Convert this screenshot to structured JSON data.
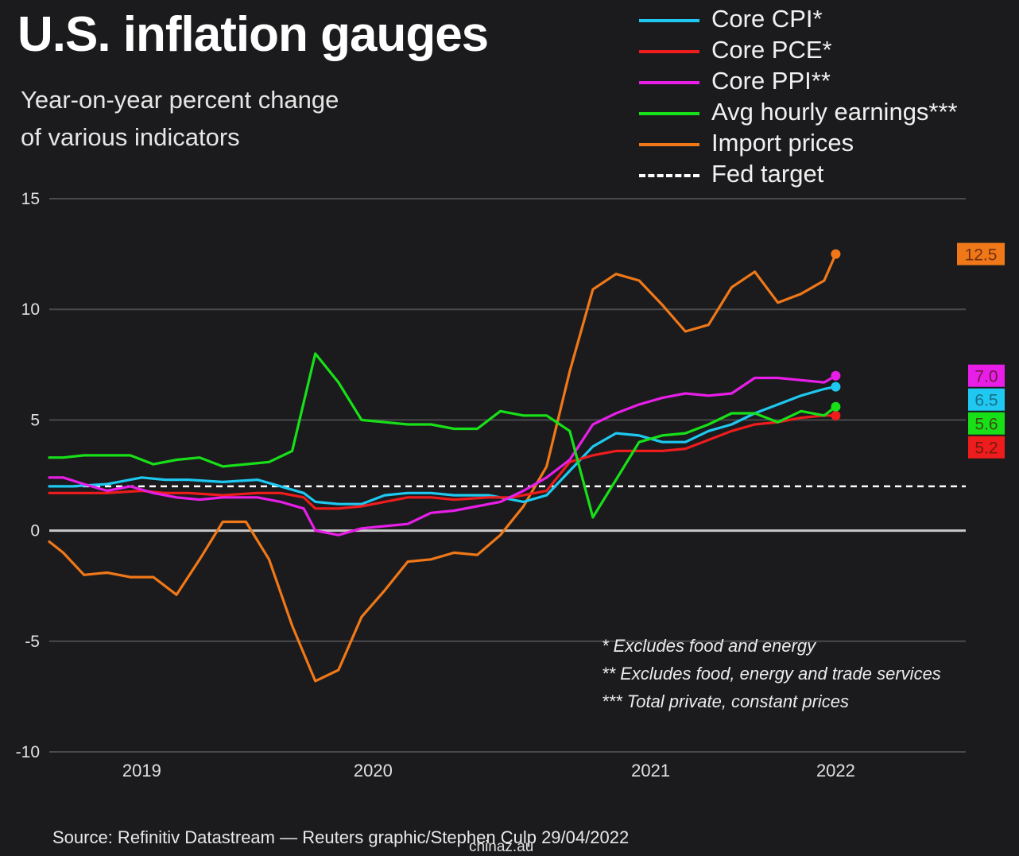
{
  "header": {
    "title": "U.S. inflation gauges",
    "subtitle_line1": "Year-on-year percent change",
    "subtitle_line2": "of various indicators"
  },
  "legend": [
    {
      "label": "Core CPI*",
      "color": "#1ec8f0",
      "style": "solid"
    },
    {
      "label": "Core PCE*",
      "color": "#ee1c1c",
      "style": "solid"
    },
    {
      "label": "Core PPI**",
      "color": "#e81ee8",
      "style": "solid"
    },
    {
      "label": "Avg hourly earnings***",
      "color": "#18e018",
      "style": "solid"
    },
    {
      "label": "Import prices",
      "color": "#f07818",
      "style": "solid"
    },
    {
      "label": "Fed target",
      "color": "#ffffff",
      "style": "dashed"
    }
  ],
  "notes": [
    "* Excludes food and energy",
    "** Excludes food, energy and trade services",
    "*** Total private, constant prices"
  ],
  "source": "Source: Refinitiv Datastream — Reuters graphic/Stephen Culp 29/04/2022",
  "watermark": "chinaz.au",
  "chart_data": {
    "type": "line",
    "ylim": [
      -10,
      15
    ],
    "yticks": [
      "15",
      "10",
      "5",
      "0",
      "-5",
      "-10"
    ],
    "ytick_values": [
      15,
      10,
      5,
      0,
      -5,
      -10
    ],
    "xlim": [
      2018.6,
      2022.27
    ],
    "xticks": [
      "2019",
      "2020",
      "2021",
      "2022"
    ],
    "xtick_values": [
      2019.0,
      2020.0,
      2021.2,
      2022.0
    ],
    "grid": true,
    "legend_position": "top-right",
    "reference_line": {
      "name": "Fed target",
      "value": 2
    },
    "series": [
      {
        "name": "Import prices",
        "color": "#f07818",
        "end_label": "12.5",
        "x": [
          2018.6,
          2018.66,
          2018.75,
          2018.85,
          2018.95,
          2019.05,
          2019.15,
          2019.25,
          2019.35,
          2019.45,
          2019.55,
          2019.65,
          2019.75,
          2019.85,
          2019.95,
          2020.05,
          2020.15,
          2020.25,
          2020.35,
          2020.45,
          2020.55,
          2020.65,
          2020.75,
          2020.85,
          2020.95,
          2021.05,
          2021.15,
          2021.25,
          2021.35,
          2021.45,
          2021.55,
          2021.65,
          2021.75,
          2021.85,
          2021.95,
          2022.0
        ],
        "y": [
          -0.5,
          -1.0,
          -2.0,
          -1.9,
          -2.1,
          -2.1,
          -2.9,
          -1.3,
          0.4,
          0.4,
          -1.3,
          -4.3,
          -6.8,
          -6.3,
          -3.9,
          -2.7,
          -1.4,
          -1.3,
          -1.0,
          -1.1,
          -0.2,
          1.1,
          2.9,
          7.2,
          10.9,
          11.6,
          11.3,
          10.2,
          9.0,
          9.3,
          11.0,
          11.7,
          10.3,
          10.7,
          11.3,
          12.5
        ]
      },
      {
        "name": "Core CPI*",
        "color": "#1ec8f0",
        "end_label": "6.5",
        "x": [
          2018.6,
          2018.7,
          2018.85,
          2019.0,
          2019.1,
          2019.2,
          2019.35,
          2019.5,
          2019.6,
          2019.7,
          2019.75,
          2019.85,
          2019.95,
          2020.05,
          2020.15,
          2020.25,
          2020.35,
          2020.5,
          2020.6,
          2020.65,
          2020.75,
          2020.85,
          2020.95,
          2021.05,
          2021.15,
          2021.25,
          2021.35,
          2021.45,
          2021.55,
          2021.65,
          2021.75,
          2021.85,
          2021.95,
          2022.0
        ],
        "y": [
          2.0,
          2.0,
          2.1,
          2.4,
          2.3,
          2.3,
          2.2,
          2.3,
          2.0,
          1.7,
          1.3,
          1.2,
          1.2,
          1.6,
          1.7,
          1.7,
          1.6,
          1.6,
          1.4,
          1.3,
          1.6,
          2.7,
          3.8,
          4.4,
          4.3,
          4.0,
          4.0,
          4.5,
          4.8,
          5.3,
          5.7,
          6.1,
          6.4,
          6.5
        ]
      },
      {
        "name": "Core PCE*",
        "color": "#ee1c1c",
        "end_label": "5.2",
        "x": [
          2018.6,
          2018.7,
          2018.85,
          2019.0,
          2019.1,
          2019.2,
          2019.35,
          2019.5,
          2019.6,
          2019.7,
          2019.75,
          2019.85,
          2019.95,
          2020.05,
          2020.15,
          2020.25,
          2020.35,
          2020.5,
          2020.6,
          2020.65,
          2020.75,
          2020.85,
          2020.95,
          2021.05,
          2021.15,
          2021.25,
          2021.35,
          2021.45,
          2021.55,
          2021.65,
          2021.75,
          2021.85,
          2021.95,
          2022.0
        ],
        "y": [
          1.7,
          1.7,
          1.7,
          1.8,
          1.7,
          1.7,
          1.6,
          1.7,
          1.7,
          1.5,
          1.0,
          1.0,
          1.1,
          1.3,
          1.5,
          1.5,
          1.4,
          1.5,
          1.5,
          1.6,
          1.8,
          3.1,
          3.4,
          3.6,
          3.6,
          3.6,
          3.7,
          4.1,
          4.5,
          4.8,
          4.9,
          5.1,
          5.2,
          5.2
        ]
      },
      {
        "name": "Core PPI**",
        "color": "#e81ee8",
        "end_label": "7.0",
        "x": [
          2018.6,
          2018.66,
          2018.75,
          2018.85,
          2018.95,
          2019.05,
          2019.15,
          2019.25,
          2019.35,
          2019.5,
          2019.6,
          2019.7,
          2019.75,
          2019.85,
          2019.95,
          2020.05,
          2020.15,
          2020.25,
          2020.35,
          2020.45,
          2020.55,
          2020.65,
          2020.75,
          2020.85,
          2020.95,
          2021.05,
          2021.15,
          2021.25,
          2021.35,
          2021.45,
          2021.55,
          2021.65,
          2021.75,
          2021.85,
          2021.95,
          2022.0
        ],
        "y": [
          2.4,
          2.4,
          2.1,
          1.8,
          2.0,
          1.7,
          1.5,
          1.4,
          1.5,
          1.5,
          1.3,
          1.0,
          0.0,
          -0.2,
          0.1,
          0.2,
          0.3,
          0.8,
          0.9,
          1.1,
          1.3,
          1.8,
          2.4,
          3.2,
          4.8,
          5.3,
          5.7,
          6.0,
          6.2,
          6.1,
          6.2,
          6.9,
          6.9,
          6.8,
          6.7,
          7.0
        ]
      },
      {
        "name": "Avg hourly earnings***",
        "color": "#18e018",
        "end_label": "5.6",
        "x": [
          2018.6,
          2018.66,
          2018.75,
          2018.85,
          2018.95,
          2019.05,
          2019.15,
          2019.25,
          2019.35,
          2019.45,
          2019.55,
          2019.65,
          2019.75,
          2019.85,
          2019.95,
          2020.05,
          2020.15,
          2020.25,
          2020.35,
          2020.45,
          2020.55,
          2020.65,
          2020.75,
          2020.85,
          2020.95,
          2021.05,
          2021.15,
          2021.25,
          2021.35,
          2021.45,
          2021.55,
          2021.65,
          2021.75,
          2021.85,
          2021.95,
          2022.0
        ],
        "y": [
          3.3,
          3.3,
          3.4,
          3.4,
          3.4,
          3.0,
          3.2,
          3.3,
          2.9,
          3.0,
          3.1,
          3.6,
          8.0,
          6.7,
          5.0,
          4.9,
          4.8,
          4.8,
          4.6,
          4.6,
          5.4,
          5.2,
          5.2,
          4.5,
          0.6,
          2.3,
          4.0,
          4.3,
          4.4,
          4.8,
          5.3,
          5.3,
          4.9,
          5.4,
          5.2,
          5.6
        ]
      }
    ]
  }
}
